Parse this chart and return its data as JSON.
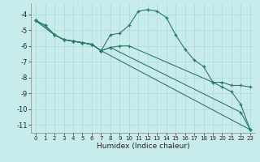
{
  "xlabel": "Humidex (Indice chaleur)",
  "background_color": "#c8ecec",
  "grid_color": "#b0d8d8",
  "line_color": "#2a7a6a",
  "xlim": [
    -0.5,
    23.5
  ],
  "ylim": [
    -11.5,
    -3.3
  ],
  "yticks": [
    -11,
    -10,
    -9,
    -8,
    -7,
    -6,
    -5,
    -4
  ],
  "xticks": [
    0,
    1,
    2,
    3,
    4,
    5,
    6,
    7,
    8,
    9,
    10,
    11,
    12,
    13,
    14,
    15,
    16,
    17,
    18,
    19,
    20,
    21,
    22,
    23
  ],
  "series": [
    {
      "x": [
        0,
        1,
        2,
        3,
        4,
        5,
        6,
        7,
        8,
        9,
        10,
        11,
        12,
        13,
        14,
        15,
        16,
        17,
        18,
        19,
        20,
        21,
        22,
        23
      ],
      "y": [
        -4.4,
        -4.7,
        -5.3,
        -5.6,
        -5.7,
        -5.8,
        -5.9,
        -6.3,
        -5.3,
        -5.2,
        -4.7,
        -3.8,
        -3.7,
        -3.8,
        -4.2,
        -5.3,
        -6.2,
        -6.9,
        -7.3,
        -8.3,
        -8.6,
        -8.9,
        -9.7,
        -11.3
      ]
    },
    {
      "x": [
        0,
        1,
        2,
        3,
        4,
        5,
        6,
        7,
        8,
        9,
        10,
        19,
        20,
        21,
        22,
        23
      ],
      "y": [
        -4.4,
        -4.7,
        -5.3,
        -5.6,
        -5.7,
        -5.8,
        -5.9,
        -6.3,
        -6.1,
        -6.0,
        -6.0,
        -8.3,
        -8.3,
        -8.5,
        -8.5,
        -8.6
      ]
    },
    {
      "x": [
        0,
        2,
        3,
        4,
        5,
        6,
        7,
        8,
        22,
        23
      ],
      "y": [
        -4.4,
        -5.3,
        -5.6,
        -5.7,
        -5.8,
        -5.9,
        -6.3,
        -6.1,
        -10.2,
        -11.3
      ]
    },
    {
      "x": [
        0,
        2,
        3,
        4,
        5,
        6,
        7,
        23
      ],
      "y": [
        -4.4,
        -5.3,
        -5.6,
        -5.7,
        -5.8,
        -5.9,
        -6.3,
        -11.3
      ]
    }
  ]
}
